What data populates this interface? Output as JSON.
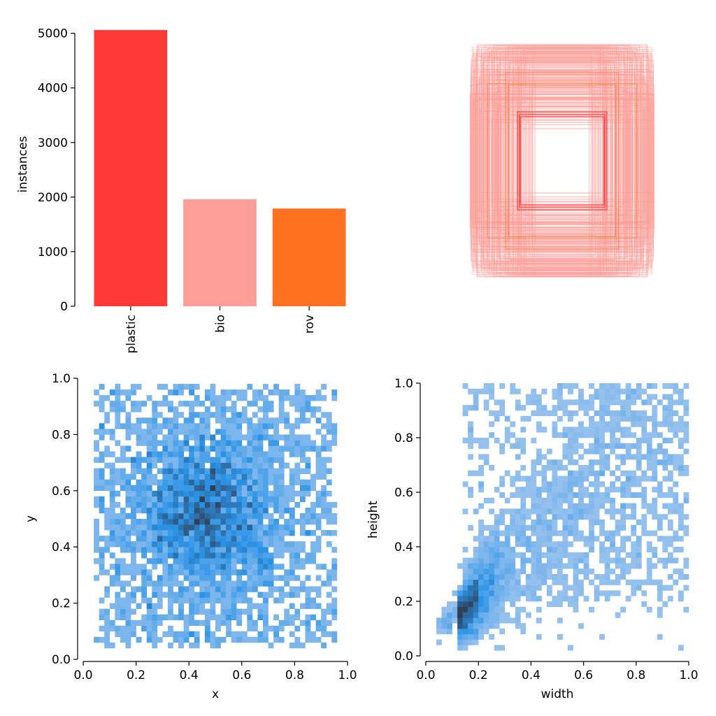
{
  "chart_data": [
    {
      "type": "bar",
      "categories": [
        "plastic",
        "bio",
        "rov"
      ],
      "values": [
        5060,
        1960,
        1790
      ],
      "colors": [
        "#ff3838",
        "#ff9d97",
        "#ff701f"
      ],
      "ylabel": "instances",
      "xlabel": "",
      "ylim": [
        0,
        5200
      ],
      "yticks": [
        0,
        1000,
        2000,
        3000,
        4000,
        5000
      ],
      "ytick_labels": [
        "0",
        "1000",
        "2000",
        "3000",
        "4000",
        "5000"
      ]
    },
    {
      "type": "box-overlay",
      "description_units": "normalized box extents centered in a unit square",
      "box_color": "#ff9d97",
      "highlight_colors": [
        "#ff3838",
        "#ff701f"
      ],
      "n_boxes": 260,
      "width_range": [
        0.25,
        0.95
      ],
      "height_range": [
        0.25,
        0.95
      ]
    },
    {
      "type": "heatmap",
      "xlabel": "x",
      "ylabel": "y",
      "xlim": [
        0,
        1
      ],
      "ylim": [
        0,
        1
      ],
      "bins": 50,
      "density_center": [
        0.47,
        0.52
      ],
      "xticks": [
        0.0,
        0.2,
        0.4,
        0.6,
        0.8,
        1.0
      ],
      "xtick_labels": [
        "0.0",
        "0.2",
        "0.4",
        "0.6",
        "0.8",
        "1.0"
      ],
      "yticks": [
        0.0,
        0.2,
        0.4,
        0.6,
        0.8,
        1.0
      ],
      "ytick_labels": [
        "0.0",
        "0.2",
        "0.4",
        "0.6",
        "0.8",
        "1.0"
      ],
      "colormap": [
        "#a6c8ef",
        "#2b93e6",
        "#2f3e55"
      ]
    },
    {
      "type": "heatmap",
      "xlabel": "width",
      "ylabel": "height",
      "xlim": [
        0,
        1
      ],
      "ylim": [
        0,
        1
      ],
      "bins": 50,
      "density_peak": [
        0.12,
        0.15
      ],
      "xticks": [
        0.0,
        0.2,
        0.4,
        0.6,
        0.8,
        1.0
      ],
      "xtick_labels": [
        "0.0",
        "0.2",
        "0.4",
        "0.6",
        "0.8",
        "1.0"
      ],
      "yticks": [
        0.0,
        0.2,
        0.4,
        0.6,
        0.8,
        1.0
      ],
      "ytick_labels": [
        "0.0",
        "0.2",
        "0.4",
        "0.6",
        "0.8",
        "1.0"
      ],
      "colormap": [
        "#a6c8ef",
        "#2b93e6",
        "#2f3e55"
      ]
    }
  ]
}
